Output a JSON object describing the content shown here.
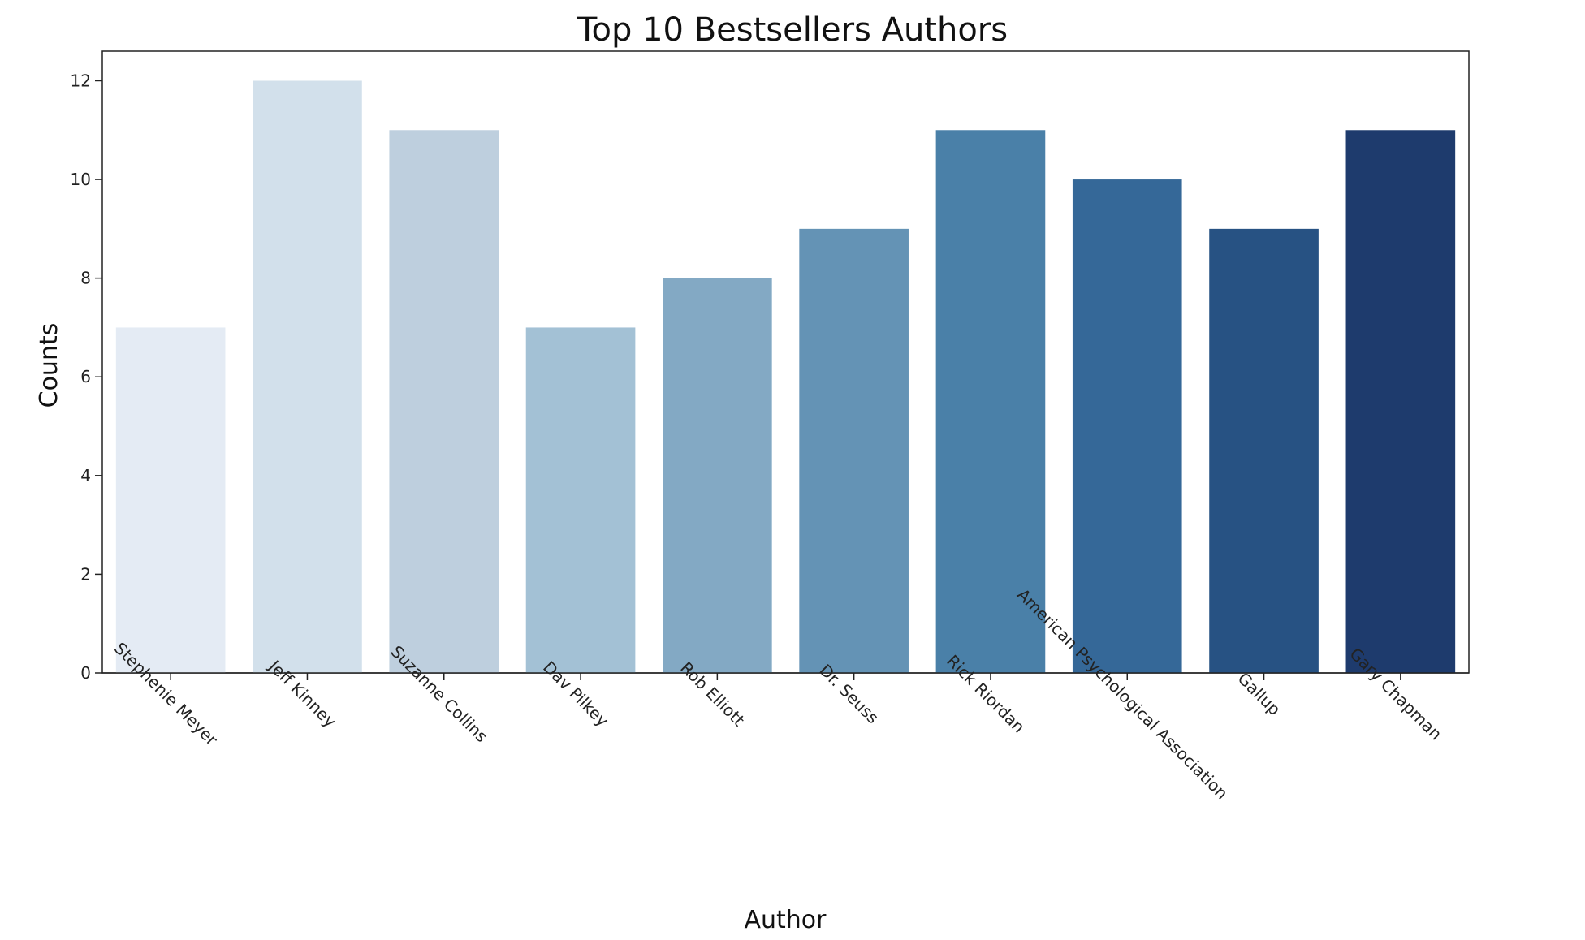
{
  "chart_data": {
    "type": "bar",
    "title": "Top 10 Bestsellers Authors",
    "xlabel": "Author",
    "ylabel": "Counts",
    "categories": [
      "Stephenie Meyer",
      "Jeff Kinney",
      "Suzanne Collins",
      "Dav Pilkey",
      "Rob Elliott",
      "Dr. Seuss",
      "Rick Riordan",
      "American Psychological Association",
      "Gallup",
      "Gary Chapman"
    ],
    "values": [
      7,
      12,
      11,
      7,
      8,
      9,
      11,
      10,
      9,
      11
    ],
    "ylim": [
      0,
      12.6
    ],
    "yticks": [
      0,
      2,
      4,
      6,
      8,
      10,
      12
    ],
    "grid": false,
    "colors": [
      "#e4ebf4",
      "#d2e0eb",
      "#becfde",
      "#a3c1d5",
      "#83a9c4",
      "#6493b5",
      "#4a80a8",
      "#356898",
      "#275283",
      "#1e3b6d"
    ]
  }
}
